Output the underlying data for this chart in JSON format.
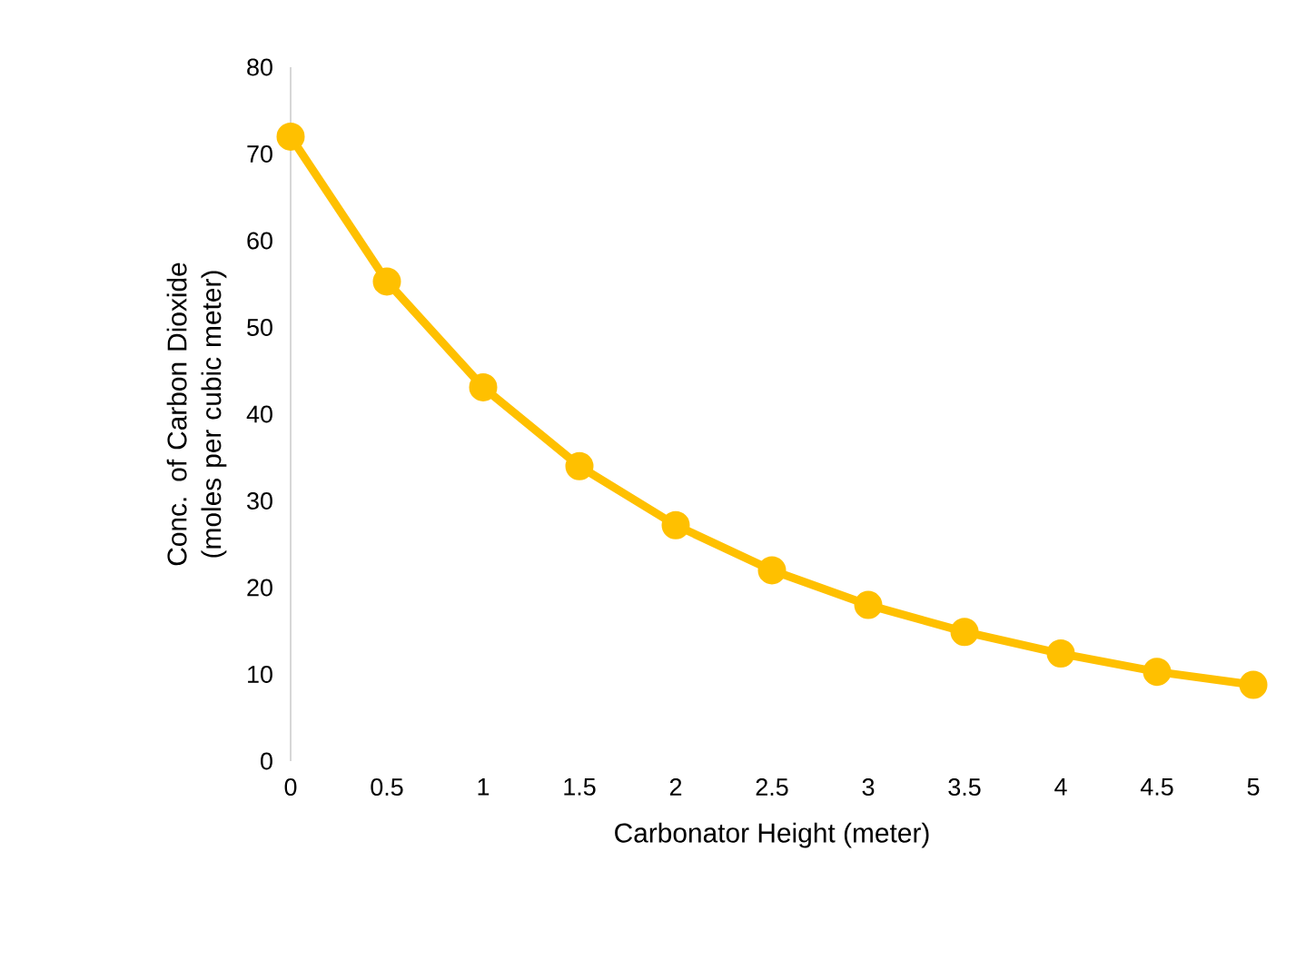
{
  "chart_data": {
    "type": "line",
    "xlabel": "Carbonator Height (meter)",
    "ylabel": "Conc. of Carbon Dioxide (moles per cubic meter)",
    "x": [
      0,
      0.5,
      1,
      1.5,
      2,
      2.5,
      3,
      3.5,
      4,
      4.5,
      5
    ],
    "series": [
      {
        "color": "#ffc000",
        "values": [
          72,
          55.3,
          43.1,
          34,
          27.2,
          22,
          18,
          14.9,
          12.4,
          10.3,
          8.8
        ]
      }
    ],
    "xlim": [
      0,
      5
    ],
    "xticks": [
      0,
      0.5,
      1,
      1.5,
      2,
      2.5,
      3,
      3.5,
      4,
      4.5,
      5
    ],
    "ylim": [
      0,
      80
    ],
    "yticks": [
      0,
      10,
      20,
      30,
      40,
      50,
      60,
      70,
      80
    ],
    "grid": false,
    "marker": "circle",
    "line_style": "solid"
  }
}
